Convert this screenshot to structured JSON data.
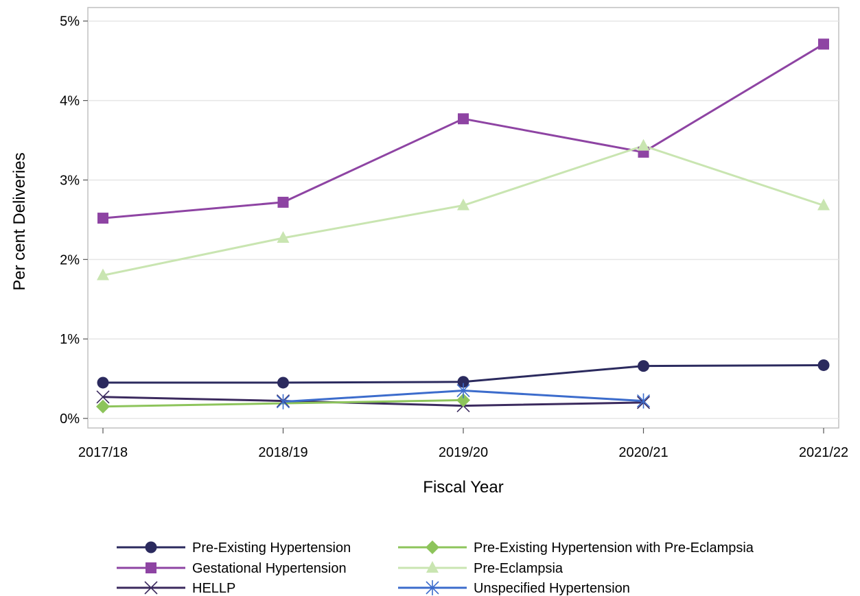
{
  "chart_data": {
    "type": "line",
    "xlabel": "Fiscal Year",
    "ylabel": "Per cent Deliveries",
    "categories": [
      "2017/18",
      "2018/19",
      "2019/20",
      "2020/21",
      "2021/22"
    ],
    "ylim": [
      -0.0012,
      0.0517
    ],
    "yticks": [
      0,
      0.01,
      0.02,
      0.03,
      0.04,
      0.05
    ],
    "ytick_labels": [
      "0%",
      "1%",
      "2%",
      "3%",
      "4%",
      "5%"
    ],
    "grid": "horizontal",
    "legend_position": "bottom",
    "series": [
      {
        "name": "Pre-Existing Hypertension",
        "marker": "circle",
        "color": "#2b2a5e",
        "values": [
          0.0045,
          0.0045,
          0.0046,
          0.0066,
          0.0067
        ]
      },
      {
        "name": "Gestational Hypertension",
        "marker": "square",
        "color": "#8e44a3",
        "values": [
          0.0252,
          0.0272,
          0.0377,
          0.0335,
          0.0471
        ]
      },
      {
        "name": "HELLP",
        "marker": "x",
        "color": "#3b2a5e",
        "values": [
          0.0027,
          0.0022,
          0.0016,
          0.002,
          null
        ]
      },
      {
        "name": "Pre-Existing Hypertension with Pre-Eclampsia",
        "marker": "diamond",
        "color": "#8dc45b",
        "values": [
          0.0015,
          null,
          0.0023,
          null,
          null
        ]
      },
      {
        "name": "Pre-Eclampsia",
        "marker": "triangle",
        "color": "#c9e5b1",
        "values": [
          0.018,
          0.0227,
          0.0268,
          0.0343,
          0.0268
        ]
      },
      {
        "name": "Unspecified Hypertension",
        "marker": "asterisk",
        "color": "#3c6ccc",
        "values": [
          null,
          0.0021,
          0.0035,
          0.0022,
          null
        ]
      }
    ]
  }
}
